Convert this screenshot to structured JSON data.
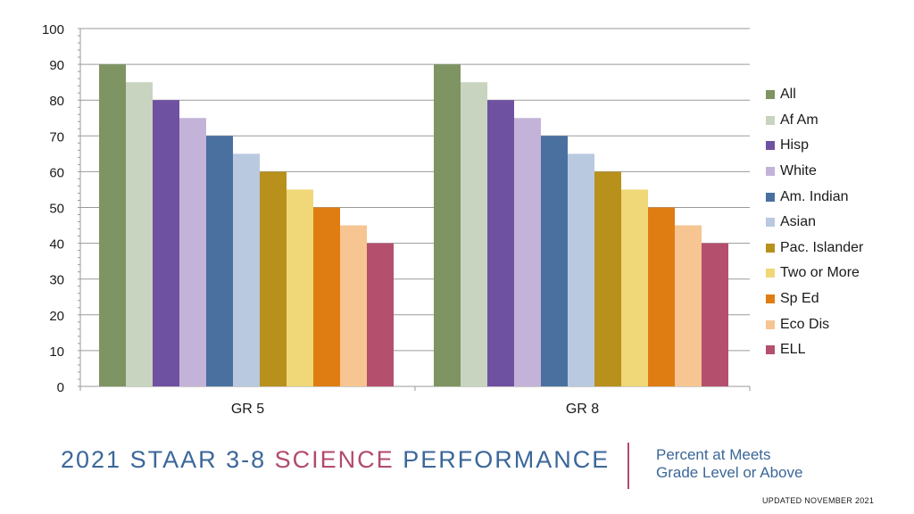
{
  "chart_data": {
    "type": "bar",
    "categories": [
      "GR 5",
      "GR 8"
    ],
    "ylim": [
      0,
      100
    ],
    "yticks": [
      0,
      10,
      20,
      30,
      40,
      50,
      60,
      70,
      80,
      90,
      100
    ],
    "grid": true,
    "legend_position": "right",
    "series": [
      {
        "name": "All",
        "color": "#7e9462",
        "values": [
          90,
          90
        ]
      },
      {
        "name": "Af Am",
        "color": "#c8d4bf",
        "values": [
          85,
          85
        ]
      },
      {
        "name": "Hisp",
        "color": "#6f51a1",
        "values": [
          80,
          80
        ]
      },
      {
        "name": "White",
        "color": "#c4b3d8",
        "values": [
          75,
          75
        ]
      },
      {
        "name": "Am. Indian",
        "color": "#4a70a0",
        "values": [
          70,
          70
        ]
      },
      {
        "name": "Asian",
        "color": "#b8c9e0",
        "values": [
          65,
          65
        ]
      },
      {
        "name": "Pac. Islander",
        "color": "#b8901c",
        "values": [
          60,
          60
        ]
      },
      {
        "name": "Two or More",
        "color": "#f0d777",
        "values": [
          55,
          55
        ]
      },
      {
        "name": "Sp Ed",
        "color": "#e07d12",
        "values": [
          50,
          50
        ]
      },
      {
        "name": "Eco Dis",
        "color": "#f6c592",
        "values": [
          45,
          45
        ]
      },
      {
        "name": "ELL",
        "color": "#b44f6e",
        "values": [
          40,
          40
        ]
      }
    ]
  },
  "footer": {
    "title_year": "2021",
    "title_part1": "STAAR 3-8",
    "title_accent": "SCIENCE",
    "title_part2": "PERFORMANCE",
    "subtitle_line1": "Percent at Meets",
    "subtitle_line2": "Grade Level or Above",
    "updated": "UPDATED NOVEMBER 2021"
  }
}
